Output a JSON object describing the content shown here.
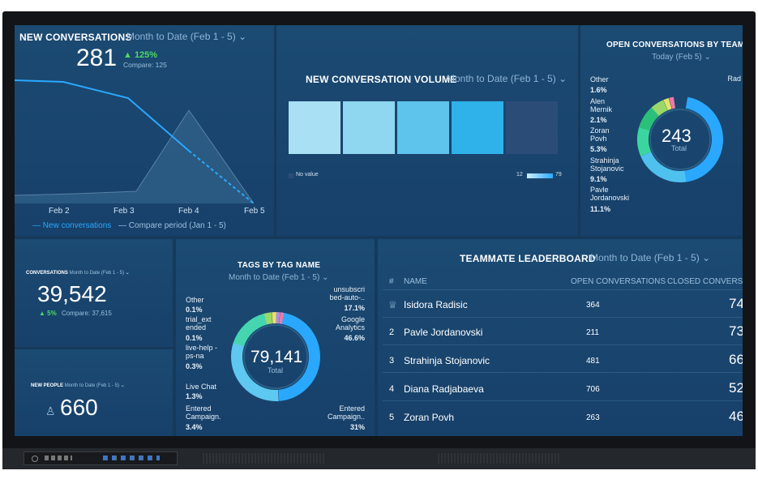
{
  "nc": {
    "title": "NEW CONVERSATIONS",
    "period": "Month to Date (Feb 1 - 5)",
    "value": "281",
    "change": "▲ 125%",
    "compare": "Compare: 125",
    "x_ticks": [
      "Feb 2",
      "Feb 3",
      "Feb 4",
      "Feb 5"
    ],
    "legend": [
      "New conversations",
      "Compare period (Jan 1 - 5)"
    ]
  },
  "vol": {
    "title": "NEW CONVERSATION VOLUME",
    "period": "Month to Date (Feb 1 - 5)",
    "no_value": "No value",
    "scale_min": "12",
    "scale_max": "79"
  },
  "open": {
    "title": "OPEN CONVERSATIONS BY TEAMMA",
    "period": "Today (Feb 5)",
    "total": "243",
    "total_label": "Total",
    "labels": [
      {
        "name": "Other",
        "pct": "1.6%"
      },
      {
        "name": "Alen Mernik",
        "pct": "2.1%"
      },
      {
        "name": "Zoran Povh",
        "pct": "5.3%"
      },
      {
        "name": "Strahinja Stojanovic",
        "pct": "9.1%"
      },
      {
        "name": "Pavle Jordanovski",
        "pct": "11.1%"
      }
    ],
    "right_label": "Rad"
  },
  "conv": {
    "title": "CONVERSATIONS",
    "period": "Month to Date (Feb 1 - 5)",
    "value": "39,542",
    "change": "▲ 5%",
    "compare": "Compare: 37,615"
  },
  "people": {
    "title": "NEW PEOPLE",
    "period": "Month to Date (Feb 1 - 5)",
    "value": "660"
  },
  "tags": {
    "title": "TAGS BY TAG NAME",
    "period": "Month to Date (Feb 1 - 5)",
    "total": "79,141",
    "total_label": "Total",
    "left": [
      {
        "name": "Other",
        "pct": "0.1%"
      },
      {
        "name": "trial_ext ended",
        "pct": "0.1%"
      },
      {
        "name": "live-help -ps-na",
        "pct": "0.3%"
      },
      {
        "name": "Live Chat",
        "pct": "1.3%"
      },
      {
        "name": "Entered Campaign.",
        "pct": "3.4%"
      }
    ],
    "right": [
      {
        "name": "unsubscri bed-auto-..",
        "pct": "17.1%"
      },
      {
        "name": "Google Analytics",
        "pct": "46.6%"
      },
      {
        "name": "Entered Campaign..",
        "pct": "31%"
      }
    ]
  },
  "board": {
    "title": "TEAMMATE LEADERBOARD",
    "period": "Month to Date (Feb 1 - 5)",
    "headers": [
      "#",
      "NAME",
      "OPEN CONVERSATIONS",
      "CLOSED CONVERSAT"
    ],
    "rows": [
      {
        "rank": "",
        "name": "Isidora Radisic",
        "open": "364",
        "closed": "74"
      },
      {
        "rank": "2",
        "name": "Pavle Jordanovski",
        "open": "211",
        "closed": "73"
      },
      {
        "rank": "3",
        "name": "Strahinja Stojanovic",
        "open": "481",
        "closed": "66"
      },
      {
        "rank": "4",
        "name": "Diana Radjabaeva",
        "open": "706",
        "closed": "52"
      },
      {
        "rank": "5",
        "name": "Zoran Povh",
        "open": "263",
        "closed": "46"
      }
    ]
  },
  "colors": {
    "accent": "#2aa8ff",
    "green": "#4cd964",
    "panel": "#1b4a72"
  }
}
